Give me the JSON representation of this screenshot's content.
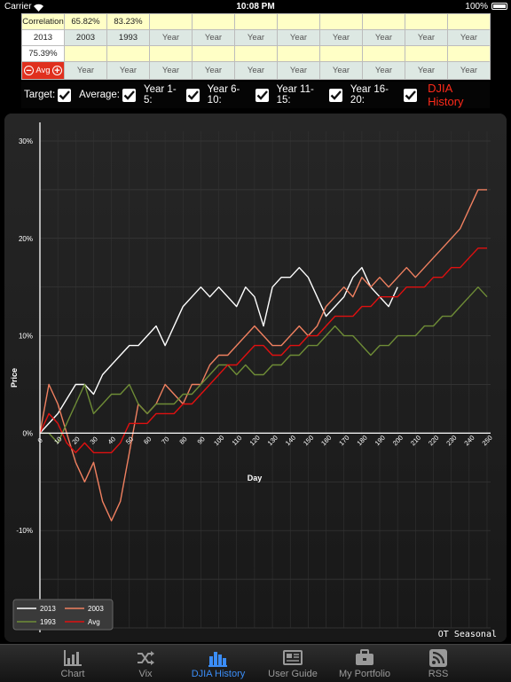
{
  "status_bar": {
    "carrier": "Carrier",
    "time": "10:08 PM",
    "battery": "100%"
  },
  "grid": {
    "row1": [
      "Correlation",
      "65.82%",
      "83.23%",
      "",
      "",
      "",
      "",
      "",
      "",
      "",
      ""
    ],
    "row2": [
      "2013",
      "2003",
      "1993",
      "Year",
      "Year",
      "Year",
      "Year",
      "Year",
      "Year",
      "Year",
      "Year"
    ],
    "row3": [
      "75.39%",
      "",
      "",
      "",
      "",
      "",
      "",
      "",
      "",
      "",
      ""
    ],
    "row4": [
      "Avg",
      "Year",
      "Year",
      "Year",
      "Year",
      "Year",
      "Year",
      "Year",
      "Year",
      "Year",
      "Year"
    ]
  },
  "toggles": [
    {
      "label": "Target:",
      "checked": true
    },
    {
      "label": "Average:",
      "checked": true
    },
    {
      "label": "Year 1-5:",
      "checked": true
    },
    {
      "label": "Year 6-10:",
      "checked": true
    },
    {
      "label": "Year 11-15:",
      "checked": true
    },
    {
      "label": "Year 16-20:",
      "checked": true
    }
  ],
  "djia_history_label": "DJIA History",
  "watermark": "OT Seasonal",
  "chart_data": {
    "type": "line",
    "xlabel": "Day",
    "ylabel": "Price",
    "xlim": [
      0,
      252
    ],
    "ylim": [
      -20,
      31
    ],
    "x_ticks": [
      "0",
      "10",
      "20",
      "30",
      "40",
      "50",
      "60",
      "70",
      "80",
      "90",
      "100",
      "110",
      "120",
      "130",
      "140",
      "150",
      "160",
      "170",
      "180",
      "190",
      "200",
      "210",
      "220",
      "230",
      "240",
      "250"
    ],
    "y_ticks": [
      "30%",
      "20%",
      "10%",
      "0%",
      "-10%"
    ],
    "y_tick_values": [
      30,
      20,
      10,
      0,
      -10
    ],
    "grid": true,
    "legend_position": "bottom-left",
    "series": [
      {
        "name": "2013",
        "color": "#ffffff",
        "points": [
          [
            0,
            0
          ],
          [
            5,
            1
          ],
          [
            10,
            2
          ],
          [
            15,
            3.5
          ],
          [
            20,
            5
          ],
          [
            25,
            5
          ],
          [
            30,
            4
          ],
          [
            35,
            6
          ],
          [
            40,
            7
          ],
          [
            45,
            8
          ],
          [
            50,
            9
          ],
          [
            55,
            9
          ],
          [
            60,
            10
          ],
          [
            65,
            11
          ],
          [
            70,
            9
          ],
          [
            75,
            11
          ],
          [
            80,
            13
          ],
          [
            85,
            14
          ],
          [
            90,
            15
          ],
          [
            95,
            14
          ],
          [
            100,
            15
          ],
          [
            105,
            14
          ],
          [
            110,
            13
          ],
          [
            115,
            15
          ],
          [
            120,
            14
          ],
          [
            125,
            11
          ],
          [
            130,
            15
          ],
          [
            135,
            16
          ],
          [
            140,
            16
          ],
          [
            145,
            17
          ],
          [
            150,
            16
          ],
          [
            155,
            14
          ],
          [
            160,
            12
          ],
          [
            165,
            13
          ],
          [
            170,
            14
          ],
          [
            175,
            16
          ],
          [
            180,
            17
          ],
          [
            185,
            15
          ],
          [
            190,
            14
          ],
          [
            195,
            13
          ],
          [
            200,
            15
          ]
        ]
      },
      {
        "name": "2003",
        "color": "#f08060",
        "points": [
          [
            0,
            0
          ],
          [
            5,
            5
          ],
          [
            10,
            3
          ],
          [
            15,
            0
          ],
          [
            20,
            -3
          ],
          [
            25,
            -5
          ],
          [
            30,
            -3
          ],
          [
            35,
            -7
          ],
          [
            40,
            -9
          ],
          [
            45,
            -7
          ],
          [
            50,
            -2
          ],
          [
            55,
            3
          ],
          [
            60,
            2
          ],
          [
            65,
            3
          ],
          [
            70,
            5
          ],
          [
            75,
            4
          ],
          [
            80,
            3
          ],
          [
            85,
            5
          ],
          [
            90,
            5
          ],
          [
            95,
            7
          ],
          [
            100,
            8
          ],
          [
            105,
            8
          ],
          [
            110,
            9
          ],
          [
            115,
            10
          ],
          [
            120,
            11
          ],
          [
            125,
            10
          ],
          [
            130,
            9
          ],
          [
            135,
            9
          ],
          [
            140,
            10
          ],
          [
            145,
            11
          ],
          [
            150,
            10
          ],
          [
            155,
            11
          ],
          [
            160,
            13
          ],
          [
            165,
            14
          ],
          [
            170,
            15
          ],
          [
            175,
            14
          ],
          [
            180,
            16
          ],
          [
            185,
            15
          ],
          [
            190,
            16
          ],
          [
            195,
            15
          ],
          [
            200,
            16
          ],
          [
            205,
            17
          ],
          [
            210,
            16
          ],
          [
            215,
            17
          ],
          [
            220,
            18
          ],
          [
            225,
            19
          ],
          [
            230,
            20
          ],
          [
            235,
            21
          ],
          [
            240,
            23
          ],
          [
            245,
            25
          ],
          [
            250,
            25
          ]
        ]
      },
      {
        "name": "1993",
        "color": "#6e8c36",
        "points": [
          [
            0,
            0
          ],
          [
            5,
            0
          ],
          [
            10,
            -1
          ],
          [
            15,
            1
          ],
          [
            20,
            3
          ],
          [
            25,
            5
          ],
          [
            30,
            2
          ],
          [
            35,
            3
          ],
          [
            40,
            4
          ],
          [
            45,
            4
          ],
          [
            50,
            5
          ],
          [
            55,
            3
          ],
          [
            60,
            2
          ],
          [
            65,
            3
          ],
          [
            70,
            3
          ],
          [
            75,
            3
          ],
          [
            80,
            4
          ],
          [
            85,
            4
          ],
          [
            90,
            5
          ],
          [
            95,
            6
          ],
          [
            100,
            7
          ],
          [
            105,
            7
          ],
          [
            110,
            6
          ],
          [
            115,
            7
          ],
          [
            120,
            6
          ],
          [
            125,
            6
          ],
          [
            130,
            7
          ],
          [
            135,
            7
          ],
          [
            140,
            8
          ],
          [
            145,
            8
          ],
          [
            150,
            9
          ],
          [
            155,
            9
          ],
          [
            160,
            10
          ],
          [
            165,
            11
          ],
          [
            170,
            10
          ],
          [
            175,
            10
          ],
          [
            180,
            9
          ],
          [
            185,
            8
          ],
          [
            190,
            9
          ],
          [
            195,
            9
          ],
          [
            200,
            10
          ],
          [
            205,
            10
          ],
          [
            210,
            10
          ],
          [
            215,
            11
          ],
          [
            220,
            11
          ],
          [
            225,
            12
          ],
          [
            230,
            12
          ],
          [
            235,
            13
          ],
          [
            240,
            14
          ],
          [
            245,
            15
          ],
          [
            250,
            14
          ]
        ]
      },
      {
        "name": "Avg",
        "color": "#e01010",
        "points": [
          [
            0,
            0
          ],
          [
            5,
            2
          ],
          [
            10,
            1
          ],
          [
            15,
            -1
          ],
          [
            20,
            -2
          ],
          [
            25,
            -1
          ],
          [
            30,
            -2
          ],
          [
            35,
            -2
          ],
          [
            40,
            -2
          ],
          [
            45,
            -1
          ],
          [
            50,
            1
          ],
          [
            55,
            1
          ],
          [
            60,
            1
          ],
          [
            65,
            2
          ],
          [
            70,
            2
          ],
          [
            75,
            2
          ],
          [
            80,
            3
          ],
          [
            85,
            3
          ],
          [
            90,
            4
          ],
          [
            95,
            5
          ],
          [
            100,
            6
          ],
          [
            105,
            7
          ],
          [
            110,
            7
          ],
          [
            115,
            8
          ],
          [
            120,
            9
          ],
          [
            125,
            9
          ],
          [
            130,
            8
          ],
          [
            135,
            8
          ],
          [
            140,
            9
          ],
          [
            145,
            9
          ],
          [
            150,
            10
          ],
          [
            155,
            10
          ],
          [
            160,
            11
          ],
          [
            165,
            12
          ],
          [
            170,
            12
          ],
          [
            175,
            12
          ],
          [
            180,
            13
          ],
          [
            185,
            13
          ],
          [
            190,
            14
          ],
          [
            195,
            14
          ],
          [
            200,
            14
          ],
          [
            205,
            15
          ],
          [
            210,
            15
          ],
          [
            215,
            15
          ],
          [
            220,
            16
          ],
          [
            225,
            16
          ],
          [
            230,
            17
          ],
          [
            235,
            17
          ],
          [
            240,
            18
          ],
          [
            245,
            19
          ],
          [
            250,
            19
          ]
        ]
      }
    ]
  },
  "tabs": [
    {
      "label": "Chart",
      "icon": "chart-icon",
      "active": false
    },
    {
      "label": "Vix",
      "icon": "shuffle-icon",
      "active": false
    },
    {
      "label": "DJIA History",
      "icon": "bar-chart-icon",
      "active": true
    },
    {
      "label": "User Guide",
      "icon": "newspaper-icon",
      "active": false
    },
    {
      "label": "My Portfolio",
      "icon": "briefcase-icon",
      "active": false
    },
    {
      "label": "RSS",
      "icon": "rss-icon",
      "active": false
    }
  ]
}
